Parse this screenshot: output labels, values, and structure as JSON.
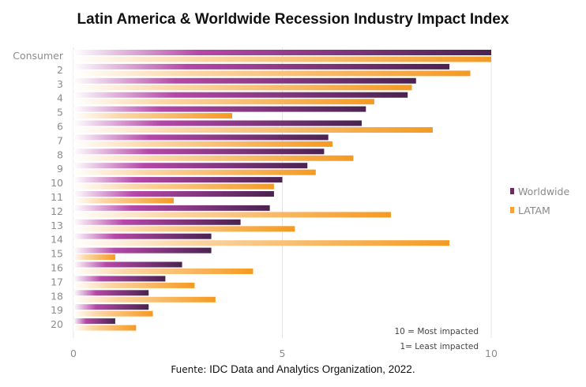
{
  "chart_data": {
    "type": "bar",
    "orientation": "horizontal",
    "title": "Latin America & Worldwide Recession Industry Impact Index",
    "categories": [
      "Consumer",
      "2",
      "3",
      "4",
      "5",
      "6",
      "7",
      "8",
      "9",
      "10",
      "11",
      "12",
      "13",
      "14",
      "15",
      "16",
      "17",
      "18",
      "19",
      "20"
    ],
    "series": [
      {
        "name": "Worldwide",
        "color": "#6b2c5e",
        "values": [
          10.0,
          9.0,
          8.2,
          8.0,
          7.0,
          6.9,
          6.1,
          6.0,
          5.6,
          5.0,
          4.8,
          4.7,
          4.0,
          3.3,
          3.3,
          2.6,
          2.2,
          1.8,
          1.8,
          1.0
        ]
      },
      {
        "name": "LATAM",
        "color": "#f7a234",
        "values": [
          10.0,
          9.5,
          8.1,
          7.2,
          3.8,
          8.6,
          6.2,
          6.7,
          5.8,
          4.8,
          2.4,
          7.6,
          5.3,
          9.0,
          1.0,
          4.3,
          2.9,
          3.4,
          1.9,
          1.5
        ]
      }
    ],
    "x_ticks": [
      "0",
      "5",
      "10"
    ],
    "xlim": [
      0,
      10
    ],
    "legend": "right",
    "grid": true,
    "annotations": [
      "10 = Most impacted",
      "1= Least impacted"
    ]
  },
  "source": {
    "prefix": "Fuente:",
    "text": "IDC Data and Analytics Organization, 2022."
  }
}
